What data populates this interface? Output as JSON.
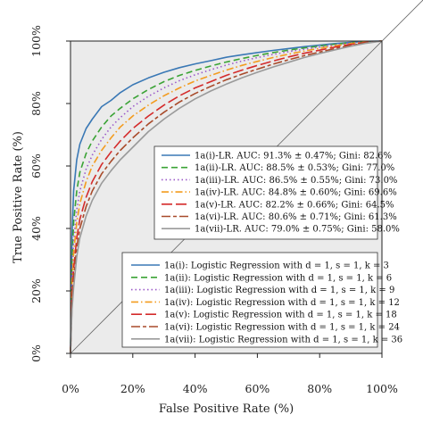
{
  "chart_data": {
    "type": "line",
    "xlabel": "False Positive Rate (%)",
    "ylabel": "True Positive Rate (%)",
    "xlim": [
      0,
      100
    ],
    "ylim": [
      0,
      100
    ],
    "x_ticks": [
      "0%",
      "20%",
      "40%",
      "60%",
      "80%",
      "100%"
    ],
    "y_ticks": [
      "0%",
      "20%",
      "40%",
      "60%",
      "80%",
      "100%"
    ],
    "grid": false,
    "background": "#ebebeb",
    "diagonal_reference": true,
    "series": [
      {
        "id": "i",
        "color": "#3a78b5",
        "dash": "solid",
        "auc_label": "1a(i)-LR.  AUC: 91.3% ± 0.47%; Gini: 82.6%",
        "model_label": "1a(i):   Logistic Regression with d = 1, s = 1, k = 3",
        "x": [
          0,
          0.5,
          1,
          2,
          3,
          5,
          7,
          10,
          13,
          16,
          20,
          25,
          30,
          35,
          40,
          45,
          50,
          55,
          60,
          65,
          70,
          75,
          80,
          85,
          90,
          95,
          100
        ],
        "y": [
          0,
          38,
          52,
          62,
          67,
          72,
          75,
          79,
          81,
          83.5,
          86,
          88.2,
          90,
          91.5,
          92.7,
          93.7,
          94.8,
          95.6,
          96.3,
          97,
          97.6,
          98.2,
          98.7,
          99.2,
          99.6,
          99.9,
          100
        ]
      },
      {
        "id": "ii",
        "color": "#3aa335",
        "dash": "dash",
        "auc_label": "1a(ii)-LR.  AUC: 88.5% ± 0.53%; Gini: 77.0%",
        "model_label": "1a(ii):  Logistic Regression with d = 1, s = 1, k = 6",
        "x": [
          0,
          0.5,
          1,
          2,
          3,
          5,
          7,
          10,
          13,
          16,
          20,
          25,
          30,
          35,
          40,
          45,
          50,
          55,
          60,
          65,
          70,
          75,
          80,
          85,
          90,
          95,
          100
        ],
        "y": [
          0,
          30,
          42,
          52,
          58,
          64,
          68,
          72.5,
          76,
          78.5,
          81.5,
          84.5,
          87,
          89,
          90.6,
          92,
          93.3,
          94.4,
          95.4,
          96.3,
          97.1,
          97.8,
          98.4,
          99,
          99.5,
          99.8,
          100
        ]
      },
      {
        "id": "iii",
        "color": "#9b59c9",
        "dash": "dot",
        "auc_label": "1a(iii)-LR.  AUC: 86.5% ± 0.55%; Gini: 73.0%",
        "model_label": "1a(iii): Logistic Regression with d = 1, s = 1, k = 9",
        "x": [
          0,
          0.5,
          1,
          2,
          3,
          5,
          7,
          10,
          13,
          16,
          20,
          25,
          30,
          35,
          40,
          45,
          50,
          55,
          60,
          65,
          70,
          75,
          80,
          85,
          90,
          95,
          100
        ],
        "y": [
          0,
          25,
          36,
          46,
          52,
          59,
          63.5,
          68.5,
          72.5,
          75.5,
          79,
          82.3,
          85,
          87.3,
          89.2,
          90.8,
          92.3,
          93.6,
          94.7,
          95.7,
          96.6,
          97.4,
          98.1,
          98.8,
          99.4,
          99.8,
          100
        ]
      },
      {
        "id": "iv",
        "color": "#f39c1f",
        "dash": "dashdot",
        "auc_label": "1a(iv)-LR.  AUC: 84.8% ± 0.60%; Gini: 69.6%",
        "model_label": "1a(iv):  Logistic Regression with d = 1, s = 1, k = 12",
        "x": [
          0,
          0.5,
          1,
          2,
          3,
          5,
          7,
          10,
          13,
          16,
          20,
          25,
          30,
          35,
          40,
          45,
          50,
          55,
          60,
          65,
          70,
          75,
          80,
          85,
          90,
          95,
          100
        ],
        "y": [
          0,
          22,
          32,
          42,
          48,
          55,
          60,
          65,
          69,
          72.5,
          76,
          79.5,
          82.5,
          85,
          87.2,
          89,
          90.7,
          92.2,
          93.5,
          94.7,
          95.8,
          96.8,
          97.7,
          98.5,
          99.2,
          99.7,
          100
        ]
      },
      {
        "id": "v",
        "color": "#d42b2b",
        "dash": "longdash",
        "auc_label": "1a(v)-LR.  AUC: 82.2% ± 0.66%; Gini: 64.5%",
        "model_label": "1a(v):   Logistic Regression with d = 1, s = 1, k = 18",
        "x": [
          0,
          0.5,
          1,
          2,
          3,
          5,
          7,
          10,
          13,
          16,
          20,
          25,
          30,
          35,
          40,
          45,
          50,
          55,
          60,
          65,
          70,
          75,
          80,
          85,
          90,
          95,
          100
        ],
        "y": [
          0,
          18,
          27,
          37,
          43,
          50,
          55,
          60.5,
          64.5,
          68,
          72,
          76,
          79.5,
          82.5,
          85,
          87,
          89,
          90.7,
          92.2,
          93.6,
          94.9,
          96.1,
          97.1,
          98.1,
          98.9,
          99.6,
          100
        ]
      },
      {
        "id": "vi",
        "color": "#a84a2a",
        "dash": "twodash",
        "auc_label": "1a(vi)-LR.  AUC: 80.6% ± 0.71%; Gini: 61.3%",
        "model_label": "1a(vi):  Logistic Regression with d = 1, s = 1, k = 24",
        "x": [
          0,
          0.5,
          1,
          2,
          3,
          5,
          7,
          10,
          13,
          16,
          20,
          25,
          30,
          35,
          40,
          45,
          50,
          55,
          60,
          65,
          70,
          75,
          80,
          85,
          90,
          95,
          100
        ],
        "y": [
          0,
          16,
          24,
          34,
          40,
          47,
          52,
          57.5,
          61.5,
          65,
          69,
          73.5,
          77.2,
          80.5,
          83.2,
          85.5,
          87.6,
          89.4,
          91,
          92.6,
          94,
          95.3,
          96.5,
          97.6,
          98.6,
          99.5,
          100
        ]
      },
      {
        "id": "vii",
        "color": "#9a9a9a",
        "dash": "solid",
        "auc_label": "1a(vii)-LR.  AUC: 79.0% ± 0.75%; Gini: 58.0%",
        "model_label": "1a(vii): Logistic Regression with d = 1, s = 1, k = 36",
        "x": [
          0,
          0.5,
          1,
          2,
          3,
          5,
          7,
          10,
          13,
          16,
          20,
          25,
          30,
          35,
          40,
          45,
          50,
          55,
          60,
          65,
          70,
          75,
          80,
          85,
          90,
          95,
          100
        ],
        "y": [
          0,
          14,
          21,
          31,
          37,
          44,
          49,
          54.5,
          58.5,
          62,
          66,
          71,
          75,
          78.5,
          81.5,
          84,
          86.2,
          88.2,
          90,
          91.7,
          93.2,
          94.7,
          96,
          97.2,
          98.3,
          99.3,
          100
        ]
      }
    ]
  }
}
